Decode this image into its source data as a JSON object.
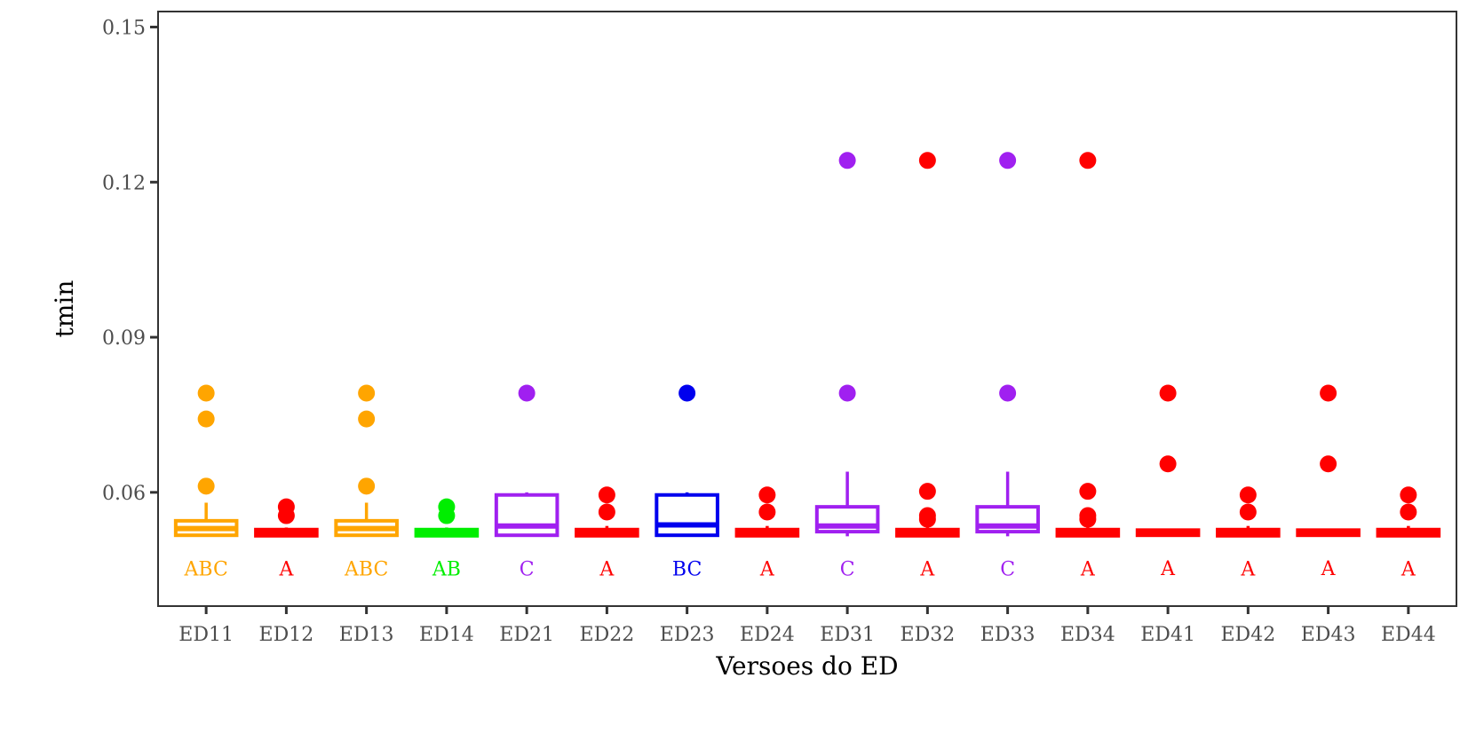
{
  "chart_data": {
    "type": "boxplot",
    "title": "",
    "xlabel": "Versoes do ED",
    "ylabel": "tmin",
    "ylim": [
      0.038,
      0.153
    ],
    "yticks": [
      0.06,
      0.09,
      0.12,
      0.15
    ],
    "ytick_labels": [
      "0.06",
      "0.09",
      "0.12",
      "0.15"
    ],
    "grid": false,
    "legend": "none",
    "categories": [
      "ED11",
      "ED12",
      "ED13",
      "ED14",
      "ED21",
      "ED22",
      "ED23",
      "ED24",
      "ED31",
      "ED32",
      "ED33",
      "ED34",
      "ED41",
      "ED42",
      "ED43",
      "ED44"
    ],
    "groups": [
      {
        "name": "ED11",
        "color": "#FFA500",
        "whisker_low": 0.0515,
        "q1": 0.0517,
        "median": 0.053,
        "q3": 0.0545,
        "whisker_high": 0.058,
        "outliers": [
          0.0612,
          0.0742,
          0.0792
        ],
        "label": "ABC"
      },
      {
        "name": "ED12",
        "color": "#FF0000",
        "whisker_low": 0.0515,
        "q1": 0.0516,
        "median": 0.0522,
        "q3": 0.0528,
        "whisker_high": 0.0532,
        "outliers": [
          0.0555,
          0.0572
        ],
        "label": "A"
      },
      {
        "name": "ED13",
        "color": "#FFA500",
        "whisker_low": 0.0515,
        "q1": 0.0517,
        "median": 0.053,
        "q3": 0.0545,
        "whisker_high": 0.058,
        "outliers": [
          0.0612,
          0.0742,
          0.0792
        ],
        "label": "ABC"
      },
      {
        "name": "ED14",
        "color": "#00EE00",
        "whisker_low": 0.0515,
        "q1": 0.0516,
        "median": 0.0522,
        "q3": 0.0528,
        "whisker_high": 0.0532,
        "outliers": [
          0.0555,
          0.0572
        ],
        "label": "AB"
      },
      {
        "name": "ED21",
        "color": "#A020F0",
        "whisker_low": 0.0515,
        "q1": 0.0517,
        "median": 0.0535,
        "q3": 0.0595,
        "whisker_high": 0.06,
        "outliers": [
          0.0792
        ],
        "label": "C"
      },
      {
        "name": "ED22",
        "color": "#FF0000",
        "whisker_low": 0.0515,
        "q1": 0.0516,
        "median": 0.0522,
        "q3": 0.0528,
        "whisker_high": 0.0535,
        "outliers": [
          0.0562,
          0.0595
        ],
        "label": "A"
      },
      {
        "name": "ED23",
        "color": "#0000EE",
        "whisker_low": 0.0515,
        "q1": 0.0517,
        "median": 0.0537,
        "q3": 0.0595,
        "whisker_high": 0.06,
        "outliers": [
          0.0792
        ],
        "label": "BC"
      },
      {
        "name": "ED24",
        "color": "#FF0000",
        "whisker_low": 0.0515,
        "q1": 0.0516,
        "median": 0.0522,
        "q3": 0.0528,
        "whisker_high": 0.0535,
        "outliers": [
          0.0562,
          0.0595
        ],
        "label": "A"
      },
      {
        "name": "ED31",
        "color": "#A020F0",
        "whisker_low": 0.0515,
        "q1": 0.0524,
        "median": 0.0535,
        "q3": 0.0572,
        "whisker_high": 0.064,
        "outliers": [
          0.0792,
          0.1242
        ],
        "label": "C"
      },
      {
        "name": "ED32",
        "color": "#FF0000",
        "whisker_low": 0.0515,
        "q1": 0.0516,
        "median": 0.0522,
        "q3": 0.0528,
        "whisker_high": 0.0532,
        "outliers": [
          0.0548,
          0.0555,
          0.0602,
          0.1242
        ],
        "label": "A"
      },
      {
        "name": "ED33",
        "color": "#A020F0",
        "whisker_low": 0.0515,
        "q1": 0.0524,
        "median": 0.0535,
        "q3": 0.0572,
        "whisker_high": 0.064,
        "outliers": [
          0.0792,
          0.1242
        ],
        "label": "C"
      },
      {
        "name": "ED34",
        "color": "#FF0000",
        "whisker_low": 0.0515,
        "q1": 0.0516,
        "median": 0.0522,
        "q3": 0.0528,
        "whisker_high": 0.0532,
        "outliers": [
          0.0548,
          0.0555,
          0.0602,
          0.1242
        ],
        "label": "A"
      },
      {
        "name": "ED41",
        "color": "#FF0000",
        "whisker_low": 0.0516,
        "q1": 0.0517,
        "median": 0.0522,
        "q3": 0.0527,
        "whisker_high": 0.0528,
        "outliers": [
          0.0655,
          0.0792
        ],
        "label": "A"
      },
      {
        "name": "ED42",
        "color": "#FF0000",
        "whisker_low": 0.0515,
        "q1": 0.0516,
        "median": 0.0522,
        "q3": 0.0528,
        "whisker_high": 0.0535,
        "outliers": [
          0.0562,
          0.0595
        ],
        "label": "A"
      },
      {
        "name": "ED43",
        "color": "#FF0000",
        "whisker_low": 0.0516,
        "q1": 0.0517,
        "median": 0.0522,
        "q3": 0.0527,
        "whisker_high": 0.0528,
        "outliers": [
          0.0655,
          0.0792
        ],
        "label": "A"
      },
      {
        "name": "ED44",
        "color": "#FF0000",
        "whisker_low": 0.0515,
        "q1": 0.0516,
        "median": 0.0522,
        "q3": 0.0528,
        "whisker_high": 0.0535,
        "outliers": [
          0.0562,
          0.0595
        ],
        "label": "A"
      }
    ]
  }
}
